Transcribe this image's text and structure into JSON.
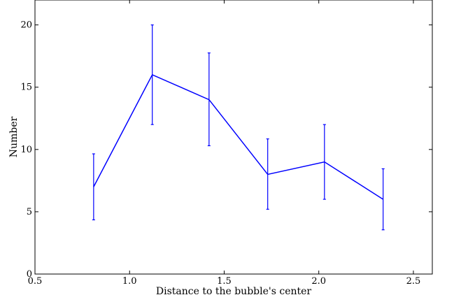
{
  "chart_data": {
    "type": "line",
    "title": "",
    "xlabel": "Distance to the bubble's center",
    "ylabel": "Number",
    "xlim": [
      0.5,
      2.6
    ],
    "ylim": [
      0,
      22
    ],
    "x_ticks": [
      0.5,
      1.0,
      1.5,
      2.0,
      2.5
    ],
    "x_tick_labels": [
      "0.5",
      "1.0",
      "1.5",
      "2.0",
      "2.5"
    ],
    "y_ticks": [
      0,
      5,
      10,
      15,
      20
    ],
    "y_tick_labels": [
      "0",
      "5",
      "10",
      "15",
      "20"
    ],
    "grid": false,
    "legend": "none",
    "series": [
      {
        "x": [
          0.81,
          1.12,
          1.42,
          1.73,
          2.03,
          2.34
        ],
        "y": [
          7,
          16,
          14,
          8,
          9,
          6
        ],
        "err_lower": [
          4.35,
          12.0,
          10.3,
          5.2,
          6.0,
          3.55
        ],
        "err_upper": [
          9.65,
          20.0,
          17.75,
          10.85,
          12.0,
          8.45
        ],
        "color": "#0000ff"
      }
    ]
  }
}
